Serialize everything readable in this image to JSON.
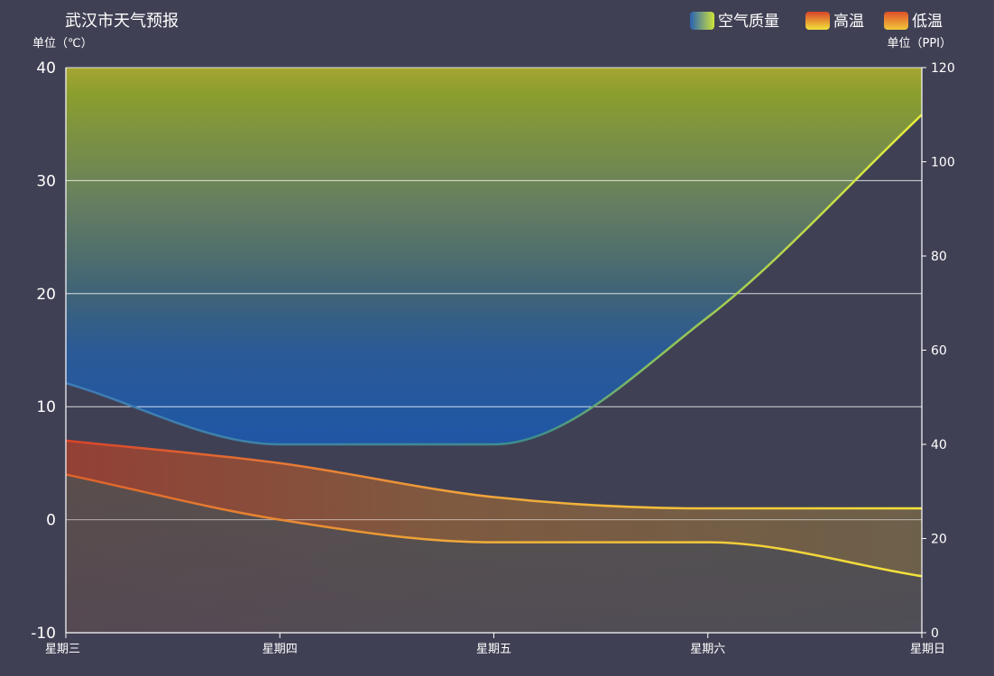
{
  "chart_data": {
    "type": "line",
    "title": "武汉市天气预报",
    "categories": [
      "星期三",
      "星期四",
      "星期五",
      "星期六",
      "星期日"
    ],
    "y_left": {
      "label": "单位（℃）",
      "range": [
        -10,
        40
      ],
      "ticks": [
        "40",
        "30",
        "20",
        "10",
        "0",
        "-10"
      ]
    },
    "y_right": {
      "label": "单位（PPI）",
      "range": [
        0,
        120
      ],
      "ticks": [
        "120",
        "100",
        "80",
        "60",
        "40",
        "20",
        "0"
      ]
    },
    "grid": true,
    "legend_position": "top-right",
    "series": [
      {
        "name": "空气质量",
        "axis": "right",
        "fill": "area-to-top",
        "values": [
          53,
          40,
          40,
          67,
          110
        ],
        "colors": [
          "#1f5fb0",
          "#c8e03a"
        ]
      },
      {
        "name": "高温",
        "axis": "left",
        "fill": "area-to-bottom",
        "values": [
          7,
          5,
          2,
          1,
          1
        ],
        "colors": [
          "#d9432a",
          "#f2e33a"
        ]
      },
      {
        "name": "低温",
        "axis": "left",
        "fill": "area-to-bottom",
        "values": [
          4,
          0,
          -2,
          -2,
          -5
        ],
        "colors": [
          "#e0602a",
          "#f0d23a"
        ]
      }
    ]
  }
}
